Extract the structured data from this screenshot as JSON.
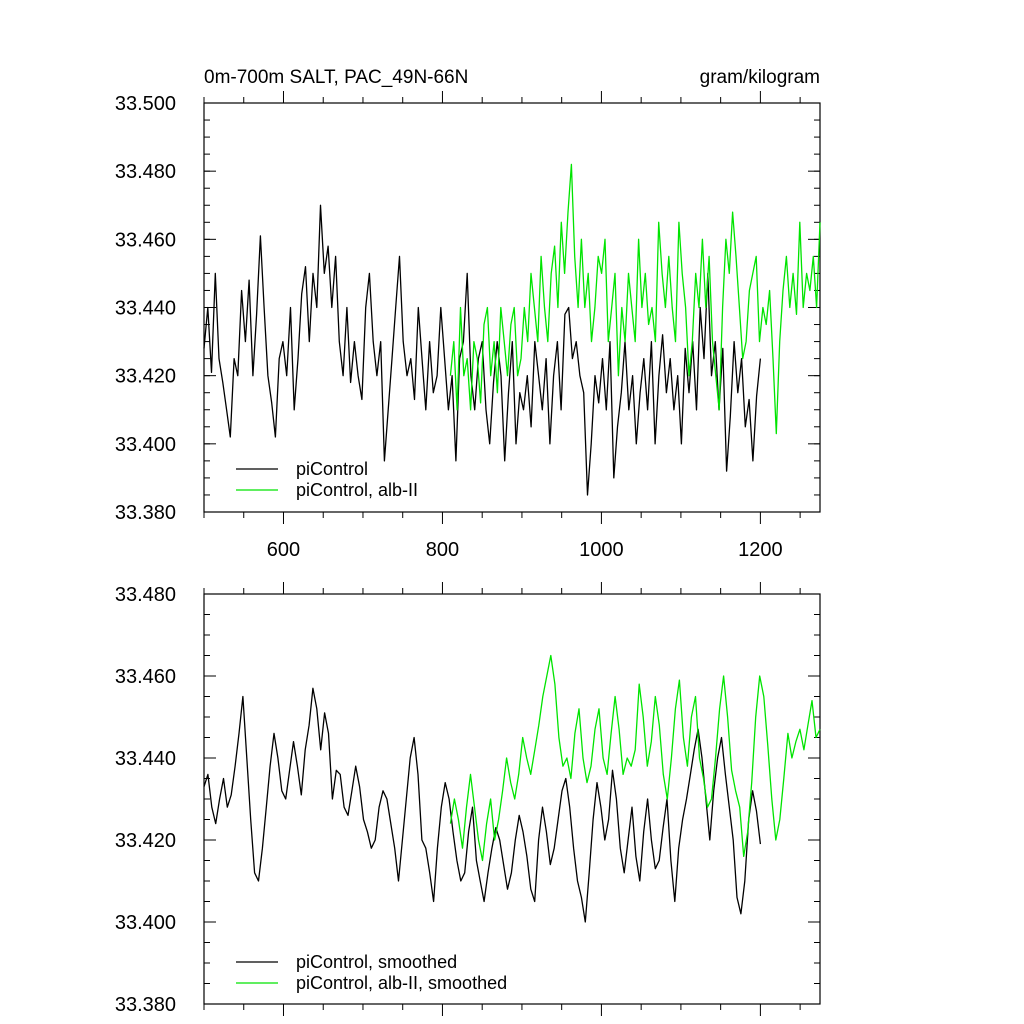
{
  "chart_data": [
    {
      "type": "line",
      "title_left": "0m-700m SALT, PAC_49N-66N",
      "title_right": "gram/kilogram",
      "xlim": [
        500,
        1275
      ],
      "ylim": [
        33.38,
        33.5
      ],
      "xticks": [
        600,
        800,
        1000,
        1200
      ],
      "xtick_labels": [
        "600",
        "800",
        "1000",
        "1200"
      ],
      "yticks": [
        33.38,
        33.4,
        33.42,
        33.44,
        33.46,
        33.48,
        33.5
      ],
      "ytick_labels": [
        "33.380",
        "33.400",
        "33.420",
        "33.440",
        "33.460",
        "33.480",
        "33.500"
      ],
      "legend": {
        "position": "bottom-left",
        "entries": [
          "piControl",
          "piControl, alb-II"
        ]
      },
      "series": [
        {
          "name": "piControl",
          "color": "#000000",
          "x_start": 500,
          "x_end": 1200,
          "values": [
            33.428,
            33.44,
            33.421,
            33.45,
            33.425,
            33.418,
            33.41,
            33.402,
            33.425,
            33.42,
            33.445,
            33.43,
            33.448,
            33.42,
            33.438,
            33.461,
            33.44,
            33.42,
            33.412,
            33.402,
            33.425,
            33.43,
            33.42,
            33.44,
            33.41,
            33.425,
            33.444,
            33.452,
            33.43,
            33.45,
            33.44,
            33.47,
            33.45,
            33.458,
            33.44,
            33.455,
            33.43,
            33.42,
            33.44,
            33.418,
            33.43,
            33.42,
            33.413,
            33.44,
            33.45,
            33.43,
            33.42,
            33.43,
            33.395,
            33.41,
            33.425,
            33.44,
            33.455,
            33.43,
            33.42,
            33.425,
            33.413,
            33.44,
            33.425,
            33.41,
            33.43,
            33.415,
            33.42,
            33.44,
            33.425,
            33.41,
            33.42,
            33.395,
            33.425,
            33.43,
            33.45,
            33.42,
            33.41,
            33.425,
            33.43,
            33.41,
            33.4,
            33.418,
            33.43,
            33.42,
            33.395,
            33.415,
            33.43,
            33.4,
            33.415,
            33.41,
            33.42,
            33.405,
            33.43,
            33.42,
            33.41,
            33.425,
            33.4,
            33.42,
            33.43,
            33.41,
            33.438,
            33.44,
            33.425,
            33.43,
            33.42,
            33.415,
            33.385,
            33.4,
            33.42,
            33.412,
            33.425,
            33.41,
            33.43,
            33.39,
            33.405,
            33.415,
            33.43,
            33.41,
            33.42,
            33.4,
            33.415,
            33.425,
            33.41,
            33.43,
            33.4,
            33.42,
            33.432,
            33.415,
            33.425,
            33.41,
            33.42,
            33.4,
            33.428,
            33.415,
            33.43,
            33.41,
            33.44,
            33.425,
            33.45,
            33.42,
            33.43,
            33.41,
            33.428,
            33.392,
            33.408,
            33.43,
            33.415,
            33.425,
            33.405,
            33.413,
            33.395,
            33.414,
            33.425
          ],
          "note": "piControl (black) annual series, 500-1200"
        },
        {
          "name": "piControl, alb-II",
          "color": "#00e400",
          "x_start": 810,
          "x_end": 1275,
          "values": [
            33.42,
            33.43,
            33.41,
            33.44,
            33.42,
            33.425,
            33.41,
            33.43,
            33.425,
            33.412,
            33.435,
            33.44,
            33.42,
            33.43,
            33.415,
            33.44,
            33.43,
            33.42,
            33.435,
            33.44,
            33.42,
            33.425,
            33.44,
            33.43,
            33.45,
            33.44,
            33.43,
            33.455,
            33.44,
            33.43,
            33.45,
            33.458,
            33.44,
            33.465,
            33.45,
            33.468,
            33.482,
            33.455,
            33.44,
            33.46,
            33.44,
            33.45,
            33.43,
            33.44,
            33.455,
            33.45,
            33.46,
            33.43,
            33.44,
            33.45,
            33.42,
            33.44,
            33.43,
            33.45,
            33.44,
            33.43,
            33.46,
            33.44,
            33.45,
            33.435,
            33.44,
            33.43,
            33.465,
            33.45,
            33.44,
            33.455,
            33.44,
            33.43,
            33.465,
            33.45,
            33.44,
            33.42,
            33.43,
            33.45,
            33.44,
            33.46,
            33.44,
            33.455,
            33.43,
            33.42,
            33.41,
            33.44,
            33.46,
            33.45,
            33.468,
            33.455,
            33.44,
            33.425,
            33.43,
            33.445,
            33.45,
            33.455,
            33.43,
            33.44,
            33.435,
            33.445,
            33.425,
            33.403,
            33.43,
            33.445,
            33.455,
            33.44,
            33.45,
            33.438,
            33.465,
            33.44,
            33.45,
            33.445,
            33.455,
            33.44,
            33.465
          ]
        }
      ]
    },
    {
      "type": "line",
      "xlim": [
        500,
        1275
      ],
      "ylim": [
        33.38,
        33.48
      ],
      "xticks": [
        600,
        800,
        1000,
        1200
      ],
      "yticks": [
        33.38,
        33.4,
        33.42,
        33.44,
        33.46,
        33.48
      ],
      "ytick_labels": [
        "33.380",
        "33.400",
        "33.420",
        "33.440",
        "33.460",
        "33.480"
      ],
      "legend": {
        "position": "bottom-left",
        "entries": [
          "piControl, smoothed",
          "piControl, alb-II, smoothed"
        ]
      },
      "series": [
        {
          "name": "piControl, smoothed",
          "color": "#000000",
          "x_start": 500,
          "x_end": 1200,
          "values": [
            33.433,
            33.436,
            33.428,
            33.424,
            33.43,
            33.435,
            33.428,
            33.431,
            33.438,
            33.446,
            33.455,
            33.44,
            33.425,
            33.412,
            33.41,
            33.418,
            33.428,
            33.438,
            33.446,
            33.44,
            33.432,
            33.43,
            33.437,
            33.444,
            33.438,
            33.431,
            33.442,
            33.448,
            33.457,
            33.452,
            33.442,
            33.451,
            33.446,
            33.43,
            33.437,
            33.436,
            33.428,
            33.426,
            33.432,
            33.438,
            33.433,
            33.425,
            33.422,
            33.418,
            33.42,
            33.428,
            33.432,
            33.43,
            33.424,
            33.418,
            33.41,
            33.42,
            33.43,
            33.44,
            33.445,
            33.436,
            33.42,
            33.418,
            33.412,
            33.405,
            33.418,
            33.428,
            33.434,
            33.43,
            33.422,
            33.415,
            33.41,
            33.412,
            33.422,
            33.428,
            33.415,
            33.41,
            33.405,
            33.412,
            33.418,
            33.423,
            33.42,
            33.414,
            33.408,
            33.412,
            33.42,
            33.426,
            33.422,
            33.416,
            33.408,
            33.405,
            33.42,
            33.428,
            33.422,
            33.414,
            33.418,
            33.425,
            33.432,
            33.435,
            33.428,
            33.418,
            33.41,
            33.406,
            33.4,
            33.412,
            33.425,
            33.434,
            33.428,
            33.42,
            33.425,
            33.437,
            33.43,
            33.418,
            33.412,
            33.42,
            33.428,
            33.416,
            33.41,
            33.422,
            33.43,
            33.42,
            33.413,
            33.415,
            33.423,
            33.43,
            33.415,
            33.405,
            33.418,
            33.425,
            33.43,
            33.436,
            33.442,
            33.447,
            33.44,
            33.43,
            33.42,
            33.432,
            33.44,
            33.445,
            33.436,
            33.428,
            33.42,
            33.406,
            33.402,
            33.41,
            33.425,
            33.432,
            33.427,
            33.419
          ],
          "note": "piControl smoothed (black), 500-1200"
        },
        {
          "name": "piControl, alb-II, smoothed",
          "color": "#00e400",
          "x_start": 810,
          "x_end": 1275,
          "values": [
            33.424,
            33.43,
            33.425,
            33.418,
            33.428,
            33.436,
            33.428,
            33.42,
            33.415,
            33.424,
            33.43,
            33.42,
            33.425,
            33.432,
            33.44,
            33.434,
            33.43,
            33.436,
            33.445,
            33.44,
            33.436,
            33.442,
            33.448,
            33.455,
            33.46,
            33.465,
            33.458,
            33.445,
            33.438,
            33.44,
            33.435,
            33.446,
            33.452,
            33.44,
            33.434,
            33.438,
            33.447,
            33.452,
            33.44,
            33.436,
            33.446,
            33.455,
            33.447,
            33.436,
            33.44,
            33.438,
            33.442,
            33.458,
            33.45,
            33.438,
            33.444,
            33.455,
            33.448,
            33.436,
            33.43,
            33.44,
            33.452,
            33.459,
            33.445,
            33.438,
            33.45,
            33.455,
            33.44,
            33.435,
            33.428,
            33.43,
            33.44,
            33.452,
            33.46,
            33.45,
            33.437,
            33.432,
            33.428,
            33.416,
            33.422,
            33.434,
            33.45,
            33.46,
            33.455,
            33.443,
            33.43,
            33.42,
            33.425,
            33.435,
            33.446,
            33.44,
            33.444,
            33.447,
            33.442,
            33.448,
            33.454,
            33.445,
            33.447
          ]
        }
      ]
    }
  ]
}
